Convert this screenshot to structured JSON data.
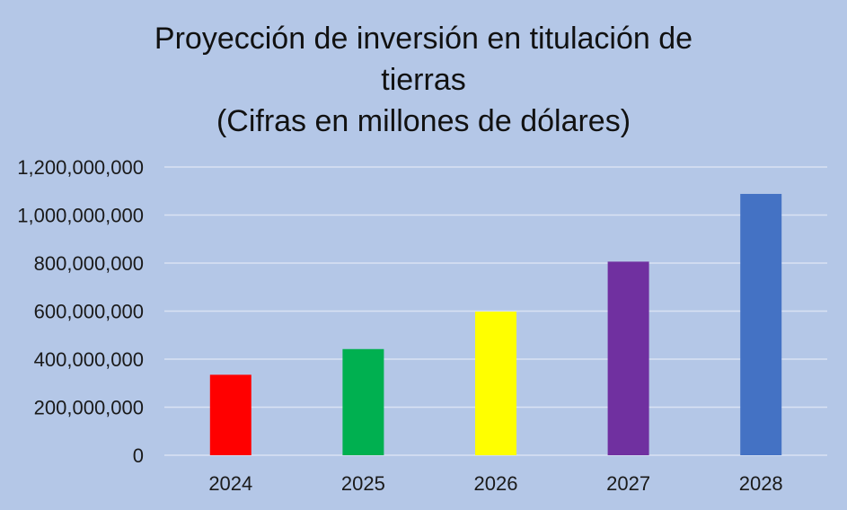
{
  "chart_data": {
    "type": "bar",
    "title_lines": [
      "Proyección de inversión en titulación de",
      "tierras",
      "(Cifras en millones de dólares)"
    ],
    "categories": [
      "2024",
      "2025",
      "2026",
      "2027",
      "2028"
    ],
    "values": [
      335000000,
      442000000,
      598000000,
      806000000,
      1088000000
    ],
    "bar_colors": [
      "#ff0000",
      "#00b050",
      "#ffff00",
      "#7030a0",
      "#4472c4"
    ],
    "yticks": [
      "0",
      "200,000,000",
      "400,000,000",
      "600,000,000",
      "800,000,000",
      "1,000,000,000",
      "1,200,000,000"
    ],
    "ylim": [
      0,
      1200000000
    ],
    "grid": true,
    "legend": "none",
    "xlabel": "",
    "ylabel": ""
  },
  "colors": {
    "background": "#b4c7e7",
    "gridline": "#d9e2f3"
  }
}
